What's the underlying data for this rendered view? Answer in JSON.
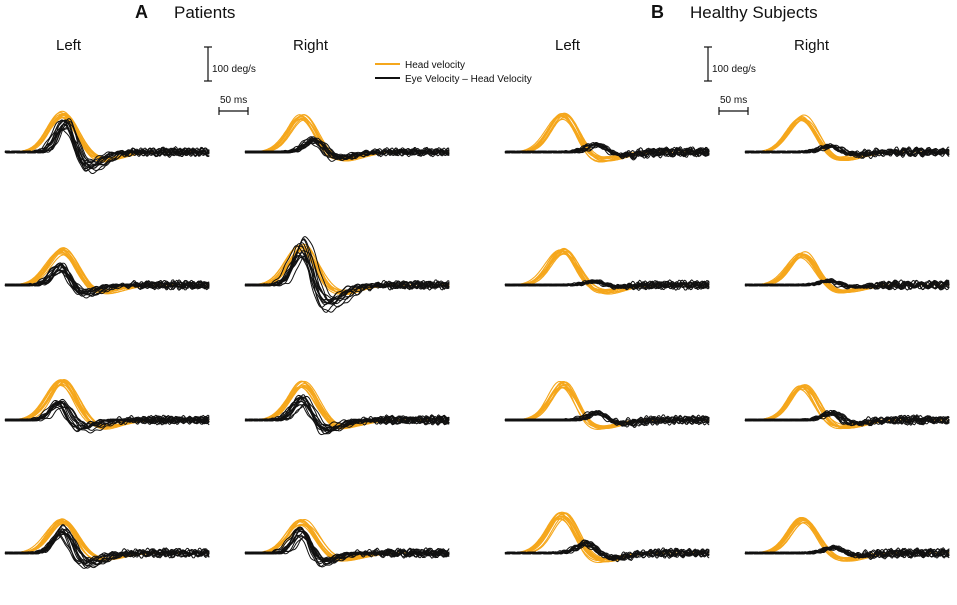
{
  "chart_data": {
    "type": "line",
    "panels": [
      {
        "letter": "A",
        "title": "Patients",
        "columns": [
          "Left",
          "Right"
        ],
        "rows": 4,
        "traces_per_plot": {
          "head": 12,
          "eye": 14
        },
        "head_peak_deg_s": [
          [
            115,
            110
          ],
          [
            105,
            120
          ],
          [
            115,
            110
          ],
          [
            100,
            95
          ]
        ],
        "eye_peak_deg_s": [
          [
            105,
            40
          ],
          [
            60,
            125
          ],
          [
            60,
            70
          ],
          [
            75,
            75
          ]
        ],
        "eye_peak_offset_ms": [
          [
            5,
            20
          ],
          [
            0,
            0
          ],
          [
            -5,
            0
          ],
          [
            0,
            0
          ]
        ]
      },
      {
        "letter": "B",
        "title": "Healthy Subjects",
        "columns": [
          "Left",
          "Right"
        ],
        "rows": 4,
        "traces_per_plot": {
          "head": 12,
          "eye": 14
        },
        "head_peak_deg_s": [
          [
            110,
            105
          ],
          [
            105,
            95
          ],
          [
            110,
            105
          ],
          [
            115,
            100
          ]
        ],
        "eye_peak_deg_s": [
          [
            25,
            20
          ],
          [
            12,
            15
          ],
          [
            25,
            25
          ],
          [
            35,
            18
          ]
        ],
        "eye_peak_offset_ms": [
          [
            60,
            50
          ],
          [
            55,
            45
          ],
          [
            60,
            50
          ],
          [
            40,
            55
          ]
        ]
      }
    ],
    "series": [
      {
        "name": "Head velocity",
        "color": "#F5A71C"
      },
      {
        "name": "Eye Velocity – Head Velocity",
        "color": "#111111"
      }
    ],
    "scale_bars": {
      "velocity": "100 deg/s",
      "time": "50 ms"
    },
    "xlabel": "",
    "ylabel": "",
    "time_window_ms": [
      -60,
      220
    ],
    "grid": false
  }
}
